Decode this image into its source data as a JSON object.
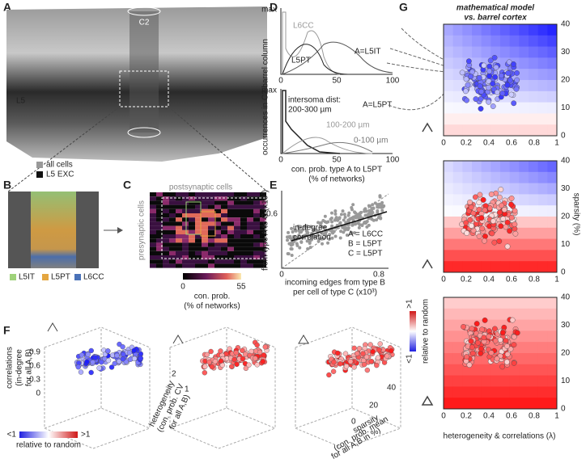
{
  "panels": {
    "A": {
      "label": "A",
      "column": "C2",
      "layer": "L5"
    },
    "B": {
      "label": "B",
      "legend": [
        "all cells",
        "L5 EXC"
      ],
      "types": [
        "L5IT",
        "L5PT",
        "L6CC"
      ]
    },
    "C": {
      "label": "C",
      "x_label": "postsynaptic cells",
      "y_label": "presynaptic cells",
      "colorbar_ticks": [
        0,
        55
      ],
      "colorbar_label": [
        "con. prob.",
        "(% of networks)"
      ]
    },
    "D": {
      "label": "D",
      "y_max": [
        "max",
        "max"
      ],
      "series_top": [
        "L6CC",
        "L5PT",
        "A=L5IT"
      ],
      "side_label": "A=L5PT",
      "annotation": [
        "intersoma dist:",
        "200-300 µm"
      ],
      "dist_labels": [
        "100-200 µm",
        "0-100 µm"
      ],
      "x_ticks": [
        0,
        50,
        100
      ],
      "y_label": "occurrences in C2 barrel column",
      "x_label": [
        "con. prob. type A to L5PT",
        "(% of networks)"
      ]
    },
    "E": {
      "label": "E",
      "y_ticks": [
        0.6
      ],
      "x_ticks": [
        0,
        0.8
      ],
      "fit_label": [
        "in-degree",
        "correlation"
      ],
      "legend": [
        "A = L6CC",
        "B = L5PT",
        "C = L5PT"
      ],
      "y_label": "from type A to C (x10³)",
      "x_label": [
        "incoming edges from type B",
        "per cell of type C (x10³)"
      ]
    },
    "F": {
      "label": "F",
      "z_ticks": [
        0.9,
        0.6,
        0.3,
        0
      ],
      "z_label": [
        "correlations",
        "(in-degree",
        "for all A,B)"
      ],
      "colorbar": [
        "<1",
        ">1",
        "relative to random"
      ],
      "het_ticks": [
        2,
        1
      ],
      "het_label": [
        "heterogeneity",
        "(con. prob. CV",
        "for all A,B)"
      ],
      "sp_ticks": [
        40,
        20,
        0
      ],
      "sp_label": [
        "sparsity",
        "(con. prob. mean",
        "for all A,B in %)"
      ]
    },
    "G": {
      "label": "G",
      "title": [
        "mathematical model",
        "vs. barrel cortex"
      ],
      "x_ticks": [
        0,
        0.2,
        0.4,
        0.6,
        0.8,
        1
      ],
      "y_ticks": [
        0,
        10,
        20,
        30,
        40
      ],
      "y_label": "sparsity (%)",
      "x_label": "heterogeneity & correlations (λ)",
      "colorbar": [
        ">1",
        "<1",
        "relative to random"
      ]
    }
  }
}
